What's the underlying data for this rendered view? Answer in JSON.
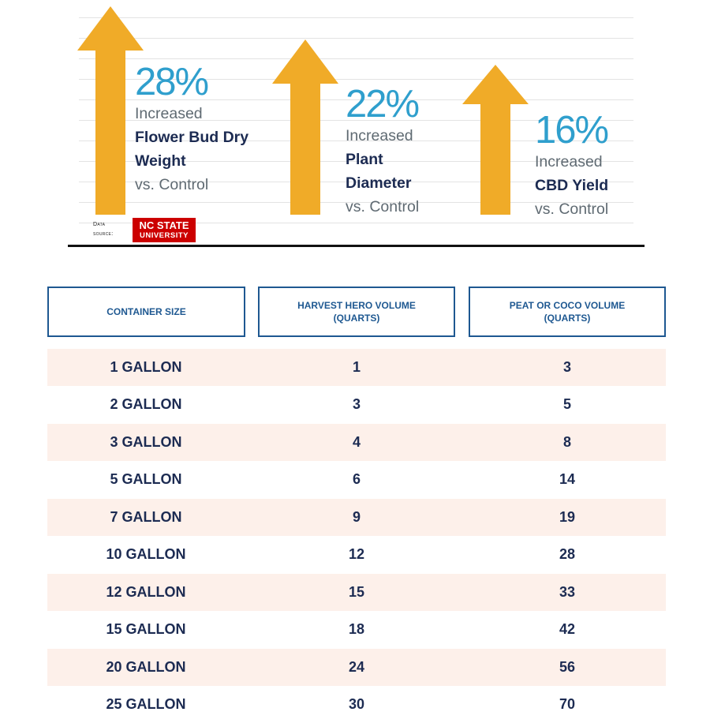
{
  "stats": [
    {
      "percent": "28%",
      "line1": "Increased",
      "line2": "Flower Bud Dry",
      "line3": "Weight",
      "line4": "vs. Control"
    },
    {
      "percent": "22%",
      "line1": "Increased",
      "line2": "Plant",
      "line3": "Diameter",
      "line4": "vs. Control"
    },
    {
      "percent": "16%",
      "line1": "Increased",
      "line2": "CBD Yield",
      "line3": "vs. Control"
    }
  ],
  "source": {
    "line1": "Data",
    "line2": "source:",
    "logo_line1": "NC STATE",
    "logo_line2": "UNIVERSITY"
  },
  "table": {
    "headers": [
      {
        "line1": "CONTAINER SIZE",
        "line2": ""
      },
      {
        "line1": "HARVEST HERO VOLUME",
        "line2": "(QUARTS)"
      },
      {
        "line1": "PEAT OR COCO VOLUME",
        "line2": "(QUARTS)"
      }
    ],
    "rows": [
      [
        "1 GALLON",
        "1",
        "3"
      ],
      [
        "2 GALLON",
        "3",
        "5"
      ],
      [
        "3 GALLON",
        "4",
        "8"
      ],
      [
        "5 GALLON",
        "6",
        "14"
      ],
      [
        "7 GALLON",
        "9",
        "19"
      ],
      [
        "10 GALLON",
        "12",
        "28"
      ],
      [
        "12 GALLON",
        "15",
        "33"
      ],
      [
        "15 GALLON",
        "18",
        "42"
      ],
      [
        "20 GALLON",
        "24",
        "56"
      ],
      [
        "25 GALLON",
        "30",
        "70"
      ]
    ]
  },
  "colors": {
    "arrow": "#f0ab28",
    "accent_blue": "#2f9fcd",
    "navy": "#1c2b52",
    "header_border": "#1e5891",
    "row_shade": "#fdf0ea",
    "logo_red": "#cc0000"
  }
}
